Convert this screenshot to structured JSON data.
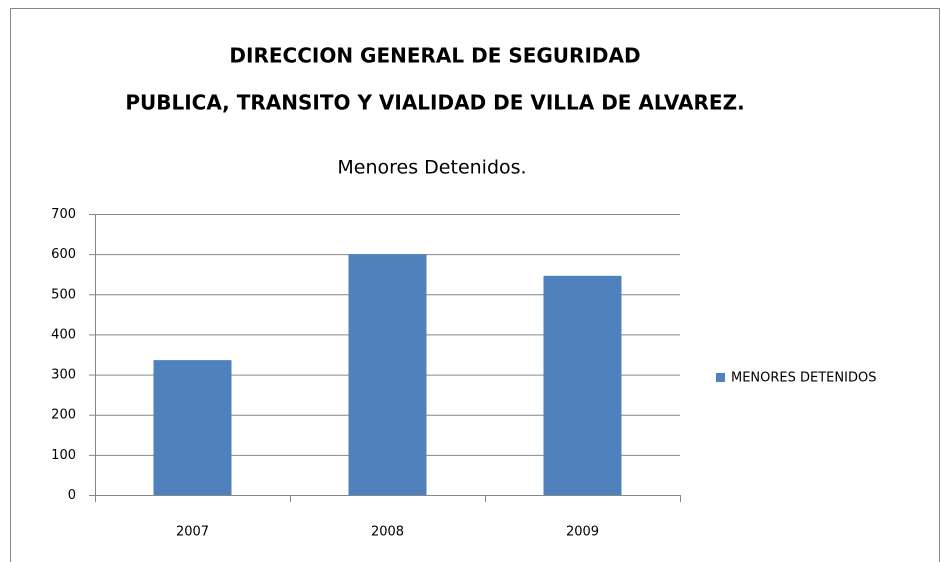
{
  "chart_data": {
    "type": "bar",
    "title": [
      "DIRECCION GENERAL DE SEGURIDAD",
      "PUBLICA, TRANSITO Y VIALIDAD DE VILLA DE ALVAREZ."
    ],
    "subtitle": "Menores Detenidos.",
    "categories": [
      "2007",
      "2008",
      "2009"
    ],
    "series": [
      {
        "name": "MENORES DETENIDOS",
        "color": "#4f81bd",
        "values": [
          336,
          600,
          546
        ]
      }
    ],
    "ylim": [
      0,
      700
    ],
    "yticks": [
      0,
      100,
      200,
      300,
      400,
      500,
      600,
      700
    ],
    "grid": true,
    "legend": "right"
  }
}
